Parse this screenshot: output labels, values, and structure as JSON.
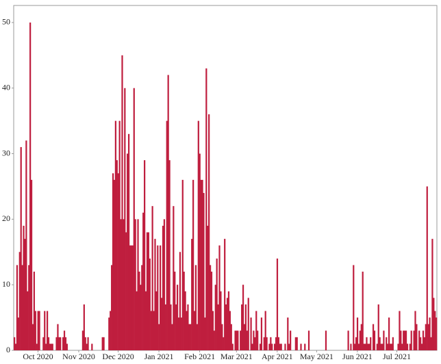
{
  "chart_data": {
    "type": "bar",
    "categories": [
      null,
      null,
      null,
      null,
      null,
      null,
      null,
      null,
      null,
      null,
      null,
      null,
      null,
      null,
      null,
      null,
      null,
      null,
      "Oct 2020",
      null,
      null,
      null,
      null,
      null,
      null,
      null,
      null,
      null,
      null,
      null,
      null,
      null,
      null,
      null,
      null,
      null,
      null,
      null,
      null,
      null,
      null,
      null,
      null,
      null,
      null,
      null,
      null,
      null,
      null,
      "Nov 2020",
      null,
      null,
      null,
      null,
      null,
      null,
      null,
      null,
      null,
      null,
      null,
      null,
      null,
      null,
      null,
      null,
      null,
      null,
      null,
      null,
      null,
      null,
      null,
      null,
      null,
      null,
      null,
      null,
      null,
      "Dec 2020",
      null,
      null,
      null,
      null,
      null,
      null,
      null,
      null,
      null,
      null,
      null,
      null,
      null,
      null,
      null,
      null,
      null,
      null,
      null,
      null,
      null,
      null,
      null,
      null,
      null,
      null,
      null,
      null,
      null,
      null,
      "Jan 2021",
      null,
      null,
      null,
      null,
      null,
      null,
      null,
      null,
      null,
      null,
      null,
      null,
      null,
      null,
      null,
      null,
      null,
      null,
      null,
      null,
      null,
      null,
      null,
      null,
      null,
      null,
      null,
      null,
      null,
      null,
      "Feb 2021",
      null,
      null,
      null,
      null,
      null,
      null,
      null,
      null,
      null,
      null,
      null,
      null,
      null,
      null,
      null,
      null,
      null,
      null,
      null,
      null,
      null,
      null,
      null,
      null,
      null,
      null,
      null,
      "Mar 2021",
      null,
      null,
      null,
      null,
      null,
      null,
      null,
      null,
      null,
      null,
      null,
      null,
      null,
      null,
      null,
      null,
      null,
      null,
      null,
      null,
      null,
      null,
      null,
      null,
      null,
      null,
      null,
      null,
      null,
      null,
      "Apr 2021",
      null,
      null,
      null,
      null,
      null,
      null,
      null,
      null,
      null,
      null,
      null,
      null,
      null,
      null,
      null,
      null,
      null,
      null,
      null,
      null,
      null,
      null,
      null,
      null,
      null,
      null,
      null,
      null,
      null,
      "May 2021",
      null,
      null,
      null,
      null,
      null,
      null,
      null,
      null,
      null,
      null,
      null,
      null,
      null,
      null,
      null,
      null,
      null,
      null,
      null,
      null,
      null,
      null,
      null,
      null,
      null,
      null,
      null,
      null,
      null,
      null,
      "Jun 2021",
      null,
      null,
      null,
      null,
      null,
      null,
      null,
      null,
      null,
      null,
      null,
      null,
      null,
      null,
      null,
      null,
      null,
      null,
      null,
      null,
      null,
      null,
      null,
      null,
      null,
      null,
      null,
      null,
      null,
      "Jul 2021",
      null,
      null,
      null,
      null,
      null,
      null,
      null,
      null,
      null,
      null,
      null,
      null,
      null,
      null,
      null,
      null,
      null,
      null,
      null,
      null,
      null,
      null,
      null,
      null,
      null,
      null,
      null,
      null,
      null,
      null
    ],
    "values": [
      2,
      1,
      13,
      5,
      15,
      31,
      13,
      19,
      17,
      32,
      9,
      13,
      50,
      26,
      4,
      12,
      6,
      1,
      6,
      6,
      0,
      0,
      2,
      6,
      1,
      6,
      2,
      1,
      1,
      1,
      0,
      0,
      2,
      4,
      2,
      2,
      0,
      2,
      3,
      2,
      1,
      0,
      0,
      0,
      0,
      0,
      0,
      0,
      0,
      0,
      0,
      0,
      3,
      7,
      2,
      1,
      2,
      0,
      0,
      1,
      0,
      0,
      0,
      0,
      0,
      0,
      0,
      2,
      2,
      0,
      0,
      0,
      5,
      6,
      13,
      27,
      26,
      35,
      29,
      27,
      35,
      20,
      45,
      20,
      40,
      18,
      30,
      33,
      16,
      16,
      16,
      40,
      20,
      9,
      20,
      12,
      10,
      13,
      21,
      29,
      9,
      18,
      18,
      14,
      6,
      22,
      6,
      17,
      9,
      16,
      4,
      16,
      8,
      19,
      20,
      7,
      35,
      42,
      29,
      7,
      4,
      22,
      12,
      7,
      10,
      5,
      15,
      5,
      26,
      12,
      9,
      6,
      7,
      4,
      4,
      17,
      26,
      6,
      13,
      4,
      35,
      30,
      26,
      26,
      24,
      5,
      43,
      19,
      36,
      13,
      12,
      6,
      3,
      10,
      14,
      7,
      16,
      9,
      4,
      2,
      17,
      7,
      8,
      9,
      6,
      4,
      1,
      0,
      3,
      3,
      3,
      0,
      3,
      7,
      10,
      4,
      7,
      3,
      8,
      0,
      5,
      1,
      3,
      2,
      6,
      3,
      0,
      1,
      5,
      0,
      2,
      6,
      2,
      0,
      1,
      2,
      1,
      0,
      1,
      2,
      14,
      2,
      1,
      1,
      0,
      0,
      1,
      0,
      5,
      1,
      3,
      0,
      0,
      0,
      2,
      2,
      0,
      0,
      1,
      0,
      0,
      1,
      0,
      0,
      3,
      0,
      0,
      0,
      0,
      0,
      0,
      0,
      0,
      0,
      0,
      0,
      0,
      3,
      0,
      0,
      0,
      0,
      0,
      0,
      0,
      0,
      0,
      0,
      0,
      0,
      0,
      0,
      0,
      0,
      3,
      0,
      1,
      0,
      13,
      1,
      2,
      5,
      1,
      3,
      4,
      12,
      1,
      1,
      2,
      1,
      1,
      2,
      0,
      4,
      3,
      0,
      1,
      7,
      2,
      1,
      1,
      3,
      0,
      2,
      1,
      5,
      1,
      1,
      2,
      0,
      0,
      0,
      1,
      6,
      3,
      1,
      3,
      3,
      3,
      1,
      0,
      1,
      3,
      0,
      3,
      6,
      4,
      0,
      3,
      2,
      1,
      3,
      2,
      4,
      25,
      4,
      5,
      2,
      17,
      8,
      6,
      5
    ],
    "color": "#bf1e3e",
    "ylim": [
      0,
      52.6
    ],
    "yticks": [
      0,
      10,
      20,
      30,
      40,
      50
    ]
  }
}
